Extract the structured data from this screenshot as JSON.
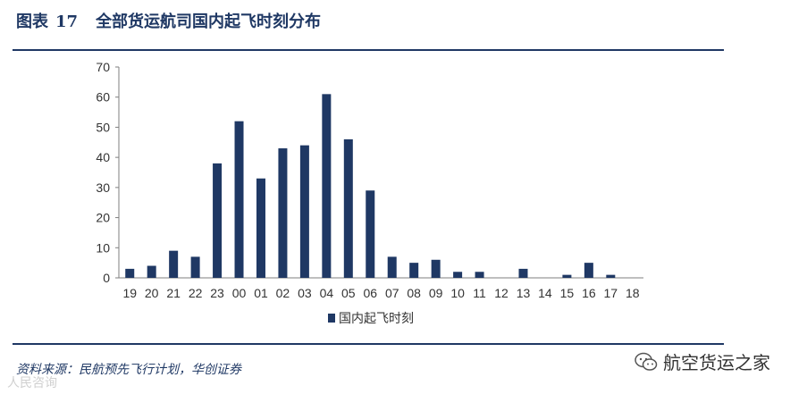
{
  "figure": {
    "label": "图表",
    "number": "17",
    "title": "全部货运航司国内起飞时刻分布"
  },
  "source": "资料来源：民航预先飞行计划，华创证券",
  "watermark": "人民咨询",
  "brand": {
    "name": "航空货运之家",
    "icon": "wechat-icon"
  },
  "colors": {
    "bar": "#1f3864",
    "title": "#1f3864",
    "axis": "#7f7f7f",
    "rule": "#1f3864"
  },
  "chart_data": {
    "type": "bar",
    "categories": [
      "19",
      "20",
      "21",
      "22",
      "23",
      "00",
      "01",
      "02",
      "03",
      "04",
      "05",
      "06",
      "07",
      "08",
      "09",
      "10",
      "11",
      "12",
      "13",
      "14",
      "15",
      "16",
      "17",
      "18"
    ],
    "series": [
      {
        "name": "国内起飞时刻",
        "values": [
          3,
          4,
          9,
          7,
          38,
          52,
          33,
          43,
          44,
          61,
          46,
          29,
          7,
          5,
          6,
          2,
          2,
          0,
          3,
          0,
          1,
          5,
          1,
          0
        ]
      }
    ],
    "ylim": [
      0,
      70
    ],
    "yticks": [
      0,
      10,
      20,
      30,
      40,
      50,
      60,
      70
    ],
    "grid": false,
    "legend": "bottom-center",
    "title": "",
    "xlabel": "",
    "ylabel": ""
  }
}
